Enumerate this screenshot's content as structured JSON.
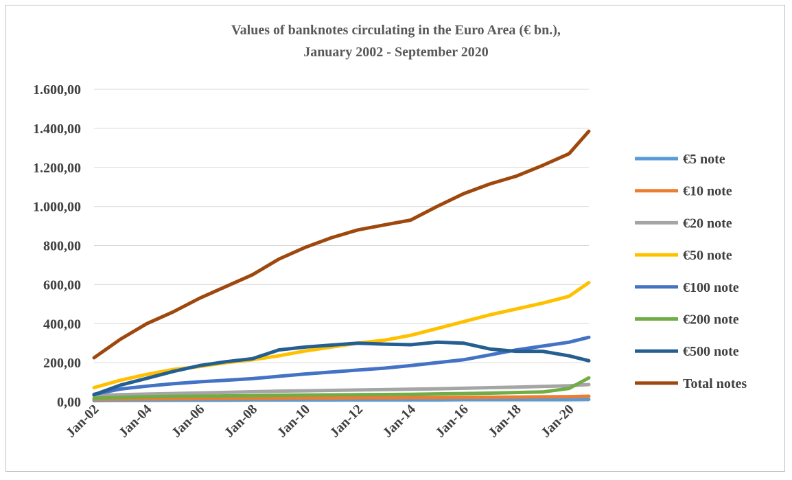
{
  "chart_data": {
    "type": "line",
    "title": "Values of banknotes circulating in the Euro Area (€ bn.),",
    "subtitle": "January 2002 - September 2020",
    "xlabel": "",
    "ylabel": "",
    "x": [
      "Jan-02",
      "Jan-03",
      "Jan-04",
      "Jan-05",
      "Jan-06",
      "Jan-07",
      "Jan-08",
      "Jan-09",
      "Jan-10",
      "Jan-11",
      "Jan-12",
      "Jan-13",
      "Jan-14",
      "Jan-15",
      "Jan-16",
      "Jan-17",
      "Jan-18",
      "Jan-19",
      "Jan-20",
      "Sep-20"
    ],
    "x_tick_labels": [
      "Jan-02",
      "Jan-04",
      "Jan-06",
      "Jan-08",
      "Jan-10",
      "Jan-12",
      "Jan-14",
      "Jan-16",
      "Jan-18",
      "Jan-20"
    ],
    "y_tick_labels": [
      "0,00",
      "200,00",
      "400,00",
      "600,00",
      "800,00",
      "1.000,00",
      "1.200,00",
      "1.400,00",
      "1.600,00"
    ],
    "ylim": [
      0,
      1600
    ],
    "grid": true,
    "legend_position": "right",
    "series": [
      {
        "name": "€5 note",
        "color": "#5b9bd5",
        "values": [
          6,
          7,
          7,
          8,
          8,
          8,
          9,
          9,
          9,
          9,
          10,
          10,
          10,
          10,
          11,
          11,
          11,
          11,
          11,
          12
        ]
      },
      {
        "name": "€10 note",
        "color": "#ed7d31",
        "values": [
          12,
          13,
          14,
          15,
          16,
          17,
          17,
          18,
          19,
          19,
          20,
          20,
          21,
          21,
          22,
          23,
          24,
          25,
          26,
          28
        ]
      },
      {
        "name": "€20 note",
        "color": "#a5a5a5",
        "values": [
          32,
          36,
          39,
          42,
          45,
          48,
          51,
          54,
          56,
          58,
          60,
          62,
          64,
          66,
          69,
          72,
          75,
          78,
          82,
          88
        ]
      },
      {
        "name": "€50 note",
        "color": "#ffc000",
        "values": [
          72,
          110,
          140,
          165,
          180,
          200,
          215,
          235,
          260,
          280,
          300,
          315,
          340,
          375,
          410,
          445,
          475,
          505,
          540,
          610
        ]
      },
      {
        "name": "€100 note",
        "color": "#4472c4",
        "values": [
          38,
          65,
          80,
          92,
          102,
          110,
          118,
          130,
          142,
          152,
          162,
          172,
          185,
          200,
          215,
          240,
          265,
          285,
          305,
          330
        ]
      },
      {
        "name": "€200 note",
        "color": "#70ad47",
        "values": [
          18,
          22,
          25,
          27,
          28,
          30,
          31,
          33,
          34,
          35,
          36,
          37,
          38,
          40,
          42,
          44,
          47,
          50,
          68,
          122
        ]
      },
      {
        "name": "€500 note",
        "color": "#255e91",
        "values": [
          36,
          85,
          120,
          155,
          185,
          205,
          220,
          265,
          280,
          290,
          300,
          295,
          292,
          305,
          300,
          270,
          258,
          258,
          235,
          210
        ]
      },
      {
        "name": "Total notes",
        "color": "#9e480e",
        "values": [
          225,
          320,
          400,
          460,
          530,
          590,
          650,
          730,
          790,
          840,
          880,
          905,
          930,
          1000,
          1065,
          1115,
          1155,
          1210,
          1270,
          1385
        ]
      }
    ]
  }
}
